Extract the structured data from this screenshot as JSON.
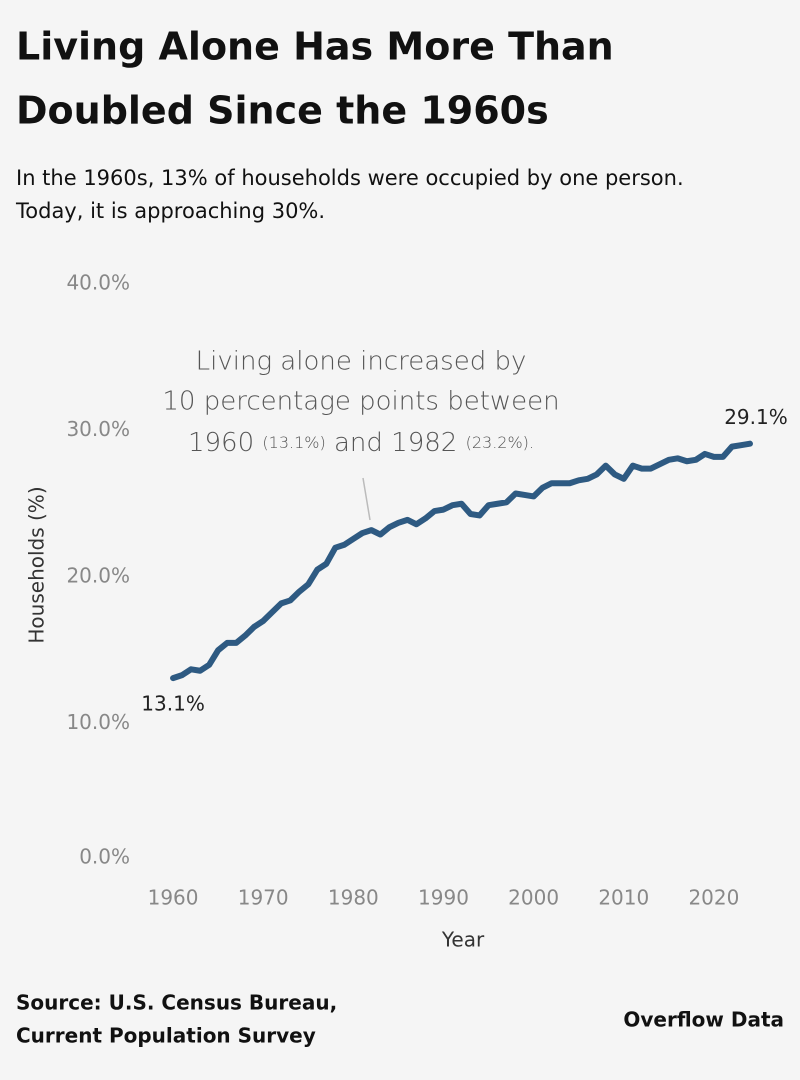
{
  "chart_data": {
    "type": "line",
    "title_lines": [
      "Living Alone Has More Than",
      "Doubled Since the 1960s"
    ],
    "subtitle_lines": [
      "In the 1960s, 13% of households were occupied by one person.",
      "Today, it is approaching 30%."
    ],
    "x_label": "Year",
    "y_label": "Households (%)",
    "x": [
      1960,
      1961,
      1962,
      1963,
      1964,
      1965,
      1966,
      1967,
      1968,
      1969,
      1970,
      1971,
      1972,
      1973,
      1974,
      1975,
      1976,
      1977,
      1978,
      1979,
      1980,
      1981,
      1982,
      1983,
      1984,
      1985,
      1986,
      1987,
      1988,
      1989,
      1990,
      1991,
      1992,
      1993,
      1994,
      1995,
      1996,
      1997,
      1998,
      1999,
      2000,
      2001,
      2002,
      2003,
      2004,
      2005,
      2006,
      2007,
      2008,
      2009,
      2010,
      2011,
      2012,
      2013,
      2014,
      2015,
      2016,
      2017,
      2018,
      2019,
      2020,
      2021,
      2022,
      2023,
      2024
    ],
    "series": [
      {
        "color": "#2e5a82",
        "values": [
          13.1,
          13.3,
          13.7,
          13.6,
          14.0,
          15.0,
          15.5,
          15.5,
          16.0,
          16.6,
          17.0,
          17.6,
          18.2,
          18.4,
          19.0,
          19.5,
          20.5,
          20.9,
          22.0,
          22.2,
          22.6,
          23.0,
          23.2,
          22.9,
          23.4,
          23.7,
          23.9,
          23.6,
          24.0,
          24.5,
          24.6,
          24.9,
          25.0,
          24.3,
          24.2,
          24.9,
          25.0,
          25.1,
          25.7,
          25.6,
          25.5,
          26.1,
          26.4,
          26.4,
          26.4,
          26.6,
          26.7,
          27.0,
          27.6,
          27.0,
          26.7,
          27.6,
          27.4,
          27.4,
          27.7,
          28.0,
          28.1,
          27.9,
          28.0,
          28.4,
          28.2,
          28.2,
          28.9,
          29.0,
          29.1
        ],
        "value_labels": [
          "13.1%",
          null,
          null,
          null,
          null,
          null,
          null,
          null,
          null,
          null,
          null,
          null,
          null,
          null,
          null,
          null,
          null,
          null,
          null,
          null,
          null,
          null,
          null,
          null,
          null,
          null,
          null,
          null,
          null,
          null,
          null,
          null,
          null,
          null,
          null,
          null,
          null,
          null,
          null,
          null,
          null,
          null,
          null,
          null,
          null,
          null,
          null,
          null,
          null,
          null,
          null,
          null,
          null,
          null,
          null,
          null,
          null,
          null,
          null,
          null,
          null,
          null,
          null,
          null,
          "29.1%"
        ]
      }
    ],
    "xlim": [
      1956,
      2026
    ],
    "xticks": [
      1960,
      1970,
      1980,
      1990,
      2000,
      2010,
      2020
    ],
    "ylim": [
      0,
      40
    ],
    "yticks": [
      {
        "value": 0,
        "label": "0.0%"
      },
      {
        "value": 10,
        "label": "10.0%"
      },
      {
        "value": 20,
        "label": "20.0%"
      },
      {
        "value": 30,
        "label": "30.0%"
      },
      {
        "value": 40,
        "label": "40.0%"
      }
    ],
    "grid": false,
    "annotation": {
      "line1": "Living alone increased by",
      "line2": "10 percentage points between",
      "line3": [
        "1960",
        "(13.1%)",
        "and",
        "1982",
        "(23.2%)."
      ]
    },
    "source_lines": [
      "Source: U.S. Census Bureau,",
      "Current Population Survey"
    ],
    "credit": "Overflow Data"
  }
}
